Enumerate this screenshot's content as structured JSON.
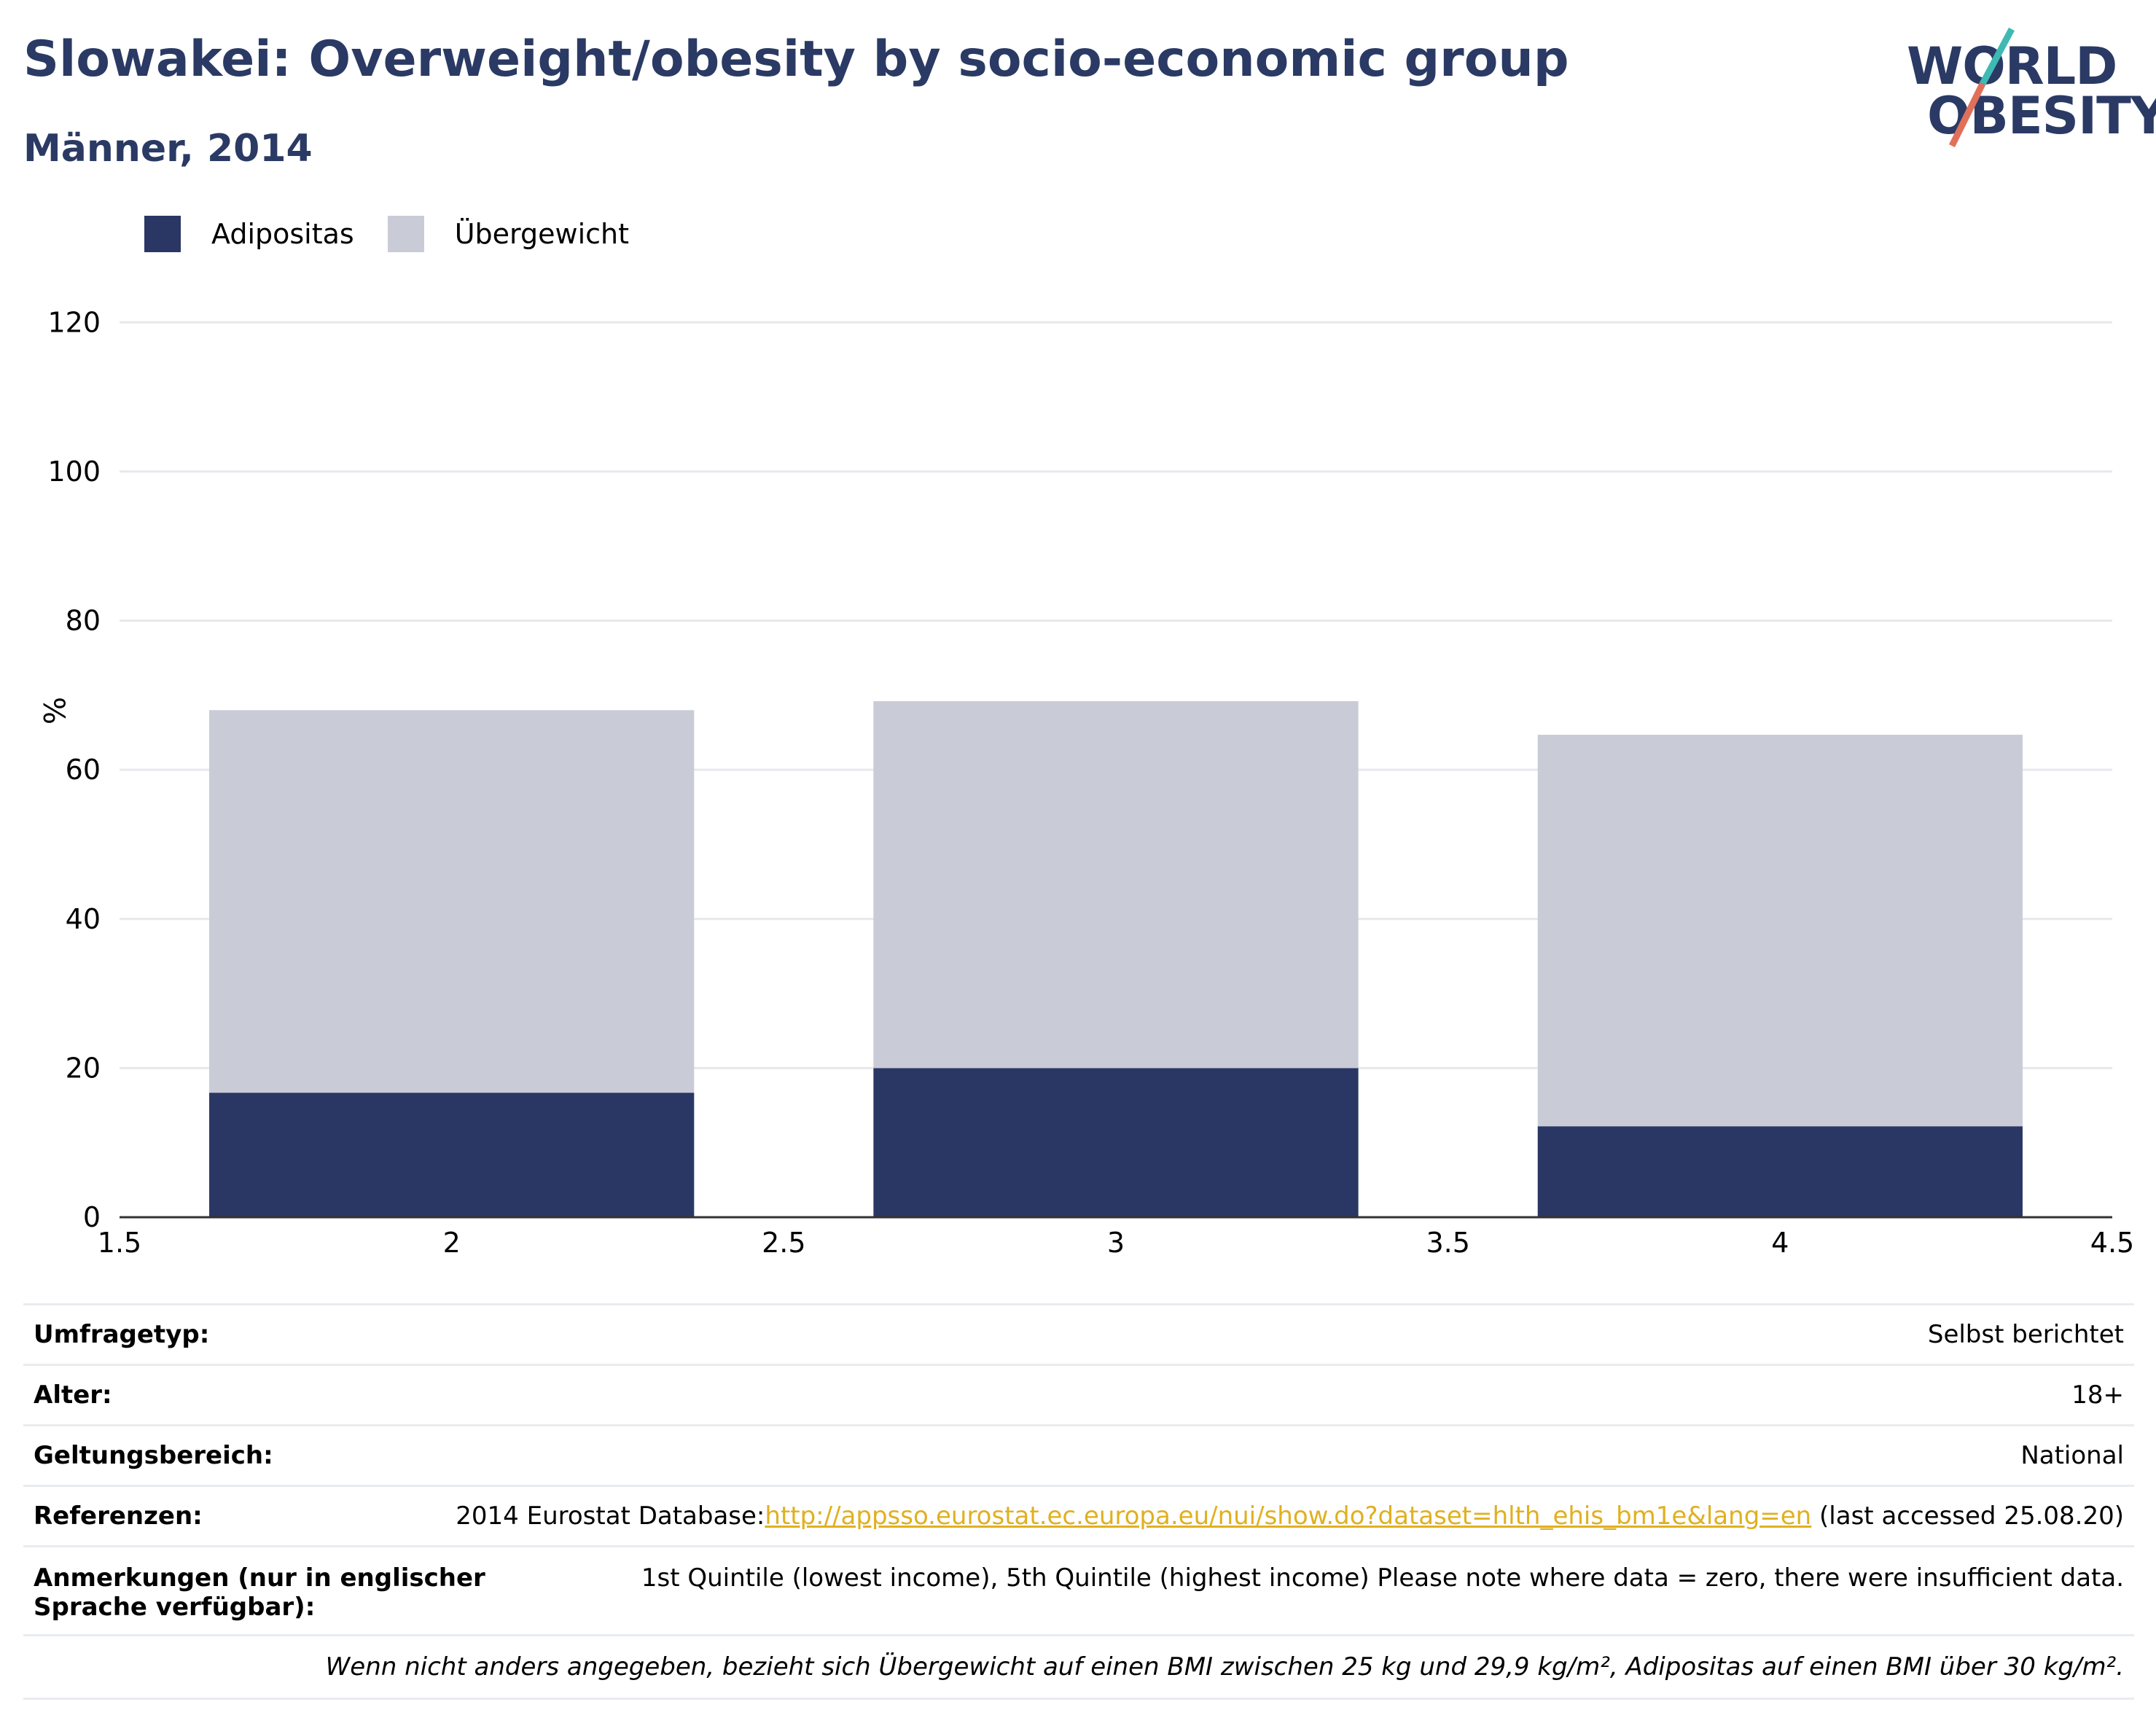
{
  "header": {
    "title": "Slowakei: Overweight/obesity by socio-economic group",
    "subtitle": "Männer, 2014"
  },
  "logo": {
    "line1": "WORLD",
    "line2": "OBESITY"
  },
  "colors": {
    "obesity": "#2a3764",
    "overweight": "#c9ccd7",
    "title": "#2a3a64",
    "link": "#e0b020"
  },
  "chart_data": {
    "type": "bar",
    "stacked": true,
    "x": [
      2,
      3,
      4
    ],
    "series": [
      {
        "name": "Adipositas",
        "values": [
          16.7,
          20.0,
          12.2
        ]
      },
      {
        "name": "Übergewicht",
        "values": [
          51.3,
          49.2,
          52.5
        ]
      }
    ],
    "xlim": [
      1.5,
      4.5
    ],
    "ylim": [
      0,
      130
    ],
    "xticks": [
      "1.5",
      "2",
      "2.5",
      "3",
      "3.5",
      "4",
      "4.5"
    ],
    "yticks": [
      "0",
      "20",
      "40",
      "60",
      "80",
      "100",
      "120"
    ],
    "ylabel": "%",
    "grid": true,
    "legend_position": "top-left"
  },
  "info": {
    "survey_type_label": "Umfragetyp:",
    "survey_type_value": "Selbst berichtet",
    "age_label": "Alter:",
    "age_value": "18+",
    "scope_label": "Geltungsbereich:",
    "scope_value": "National",
    "refs_label": "Referenzen:",
    "refs_prefix": "2014 Eurostat Database:",
    "refs_link": "http://appsso.eurostat.ec.europa.eu/nui/show.do?dataset=hlth_ehis_bm1e&lang=en",
    "refs_suffix": " (last accessed 25.08.20)",
    "notes_label": "Anmerkungen (nur in englischer Sprache verfügbar):",
    "notes_value": "1st Quintile (lowest income), 5th Quintile (highest income) Please note where data = zero, there were insufficient data.",
    "footnote": "Wenn nicht anders angegeben, bezieht sich Übergewicht auf einen BMI zwischen 25 kg und 29,9 kg/m², Adipositas auf einen BMI über 30 kg/m²."
  }
}
